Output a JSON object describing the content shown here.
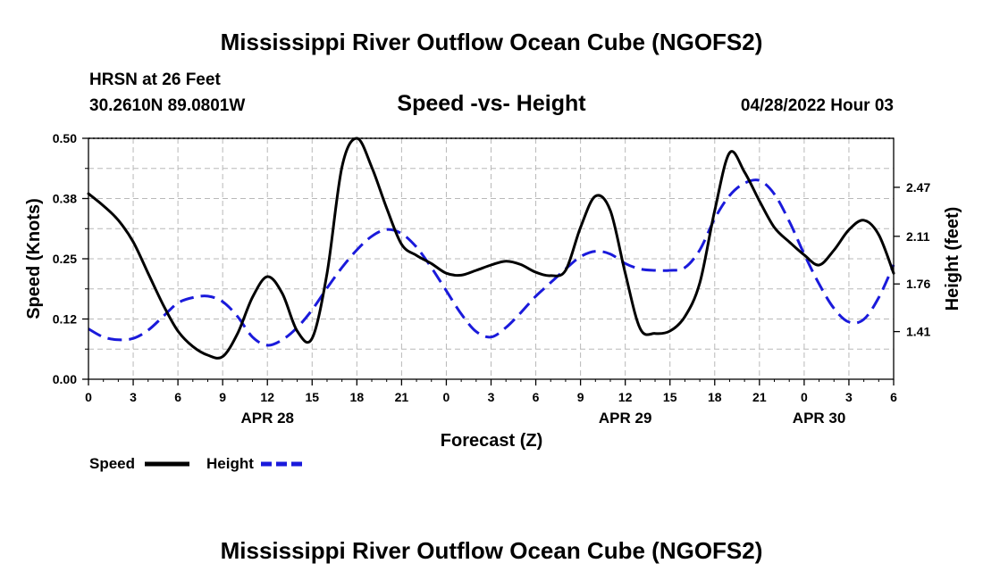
{
  "header": {
    "title": "Mississippi River Outflow Ocean Cube (NGOFS2)",
    "station": "HRSN at 26 Feet",
    "coords": "30.2610N  89.0801W",
    "subtitle": "Speed -vs- Height",
    "datetime": "04/28/2022 Hour 03"
  },
  "footer": {
    "title": "Mississippi River Outflow Ocean Cube (NGOFS2)"
  },
  "chart_data": {
    "type": "line",
    "title": "Speed -vs- Height",
    "xlabel": "Forecast (Z)",
    "ylabel": "Speed (Knots)",
    "y2label": "Height (feet)",
    "xlim": [
      0,
      54
    ],
    "ylim": [
      0,
      0.5
    ],
    "y2lim": [
      1.06,
      2.83
    ],
    "grid": true,
    "x_ticks": [
      0,
      3,
      6,
      9,
      12,
      15,
      18,
      21,
      24,
      27,
      30,
      33,
      36,
      39,
      42,
      45,
      48,
      51,
      54
    ],
    "x_tick_labels": [
      "0",
      "3",
      "6",
      "9",
      "12",
      "15",
      "18",
      "21",
      "0",
      "3",
      "6",
      "9",
      "12",
      "15",
      "18",
      "21",
      "0",
      "3",
      "6"
    ],
    "y_ticks": [
      0,
      0.125,
      0.25,
      0.375,
      0.5
    ],
    "y_tick_labels": [
      "0.00",
      "0.12",
      "0.25",
      "0.38",
      "0.50"
    ],
    "y2_ticks": [
      1.41,
      1.76,
      2.11,
      2.47
    ],
    "y2_tick_labels": [
      "1.41",
      "1.76",
      "2.11",
      "2.47"
    ],
    "date_labels": [
      {
        "x": 12,
        "label": "APR 28"
      },
      {
        "x": 36,
        "label": "APR 29"
      },
      {
        "x": 49,
        "label": "APR 30"
      }
    ],
    "legend_position": "bottom-left",
    "series": [
      {
        "name": "Speed",
        "axis": "left",
        "color": "#000000",
        "style": "solid",
        "x": [
          0,
          1,
          2,
          3,
          4,
          5,
          6,
          7,
          8,
          9,
          10,
          11,
          12,
          13,
          14,
          15,
          16,
          17,
          18,
          19,
          20,
          21,
          22,
          23,
          24,
          25,
          26,
          27,
          28,
          29,
          30,
          31,
          32,
          33,
          34,
          35,
          36,
          37,
          38,
          39,
          40,
          41,
          42,
          43,
          44,
          45,
          46,
          47,
          48,
          49,
          50,
          51,
          52,
          53,
          54
        ],
        "values": [
          0.385,
          0.36,
          0.33,
          0.285,
          0.22,
          0.155,
          0.1,
          0.068,
          0.05,
          0.047,
          0.095,
          0.17,
          0.213,
          0.178,
          0.1,
          0.085,
          0.22,
          0.44,
          0.5,
          0.44,
          0.355,
          0.28,
          0.257,
          0.24,
          0.22,
          0.216,
          0.226,
          0.237,
          0.245,
          0.238,
          0.222,
          0.215,
          0.226,
          0.315,
          0.38,
          0.35,
          0.22,
          0.105,
          0.095,
          0.1,
          0.13,
          0.2,
          0.35,
          0.47,
          0.43,
          0.37,
          0.315,
          0.285,
          0.258,
          0.237,
          0.268,
          0.31,
          0.33,
          0.3,
          0.22
        ]
      },
      {
        "name": "Height",
        "axis": "right",
        "color": "#1a1adb",
        "style": "dashed",
        "x": [
          0,
          1,
          2,
          3,
          4,
          5,
          6,
          7,
          8,
          9,
          10,
          11,
          12,
          13,
          14,
          15,
          16,
          17,
          18,
          19,
          20,
          21,
          22,
          23,
          24,
          25,
          26,
          27,
          28,
          29,
          30,
          31,
          32,
          33,
          34,
          35,
          36,
          37,
          38,
          39,
          40,
          41,
          42,
          43,
          44,
          45,
          46,
          47,
          48,
          49,
          50,
          51,
          52,
          53,
          54
        ],
        "values": [
          1.43,
          1.37,
          1.35,
          1.36,
          1.42,
          1.52,
          1.62,
          1.66,
          1.67,
          1.63,
          1.52,
          1.37,
          1.31,
          1.35,
          1.44,
          1.57,
          1.73,
          1.88,
          2.01,
          2.11,
          2.16,
          2.13,
          2.03,
          1.88,
          1.71,
          1.54,
          1.41,
          1.37,
          1.44,
          1.55,
          1.67,
          1.77,
          1.87,
          1.96,
          2.0,
          1.98,
          1.91,
          1.87,
          1.86,
          1.86,
          1.88,
          2.01,
          2.24,
          2.41,
          2.5,
          2.52,
          2.42,
          2.22,
          1.98,
          1.76,
          1.58,
          1.48,
          1.5,
          1.66,
          1.9
        ]
      }
    ]
  }
}
